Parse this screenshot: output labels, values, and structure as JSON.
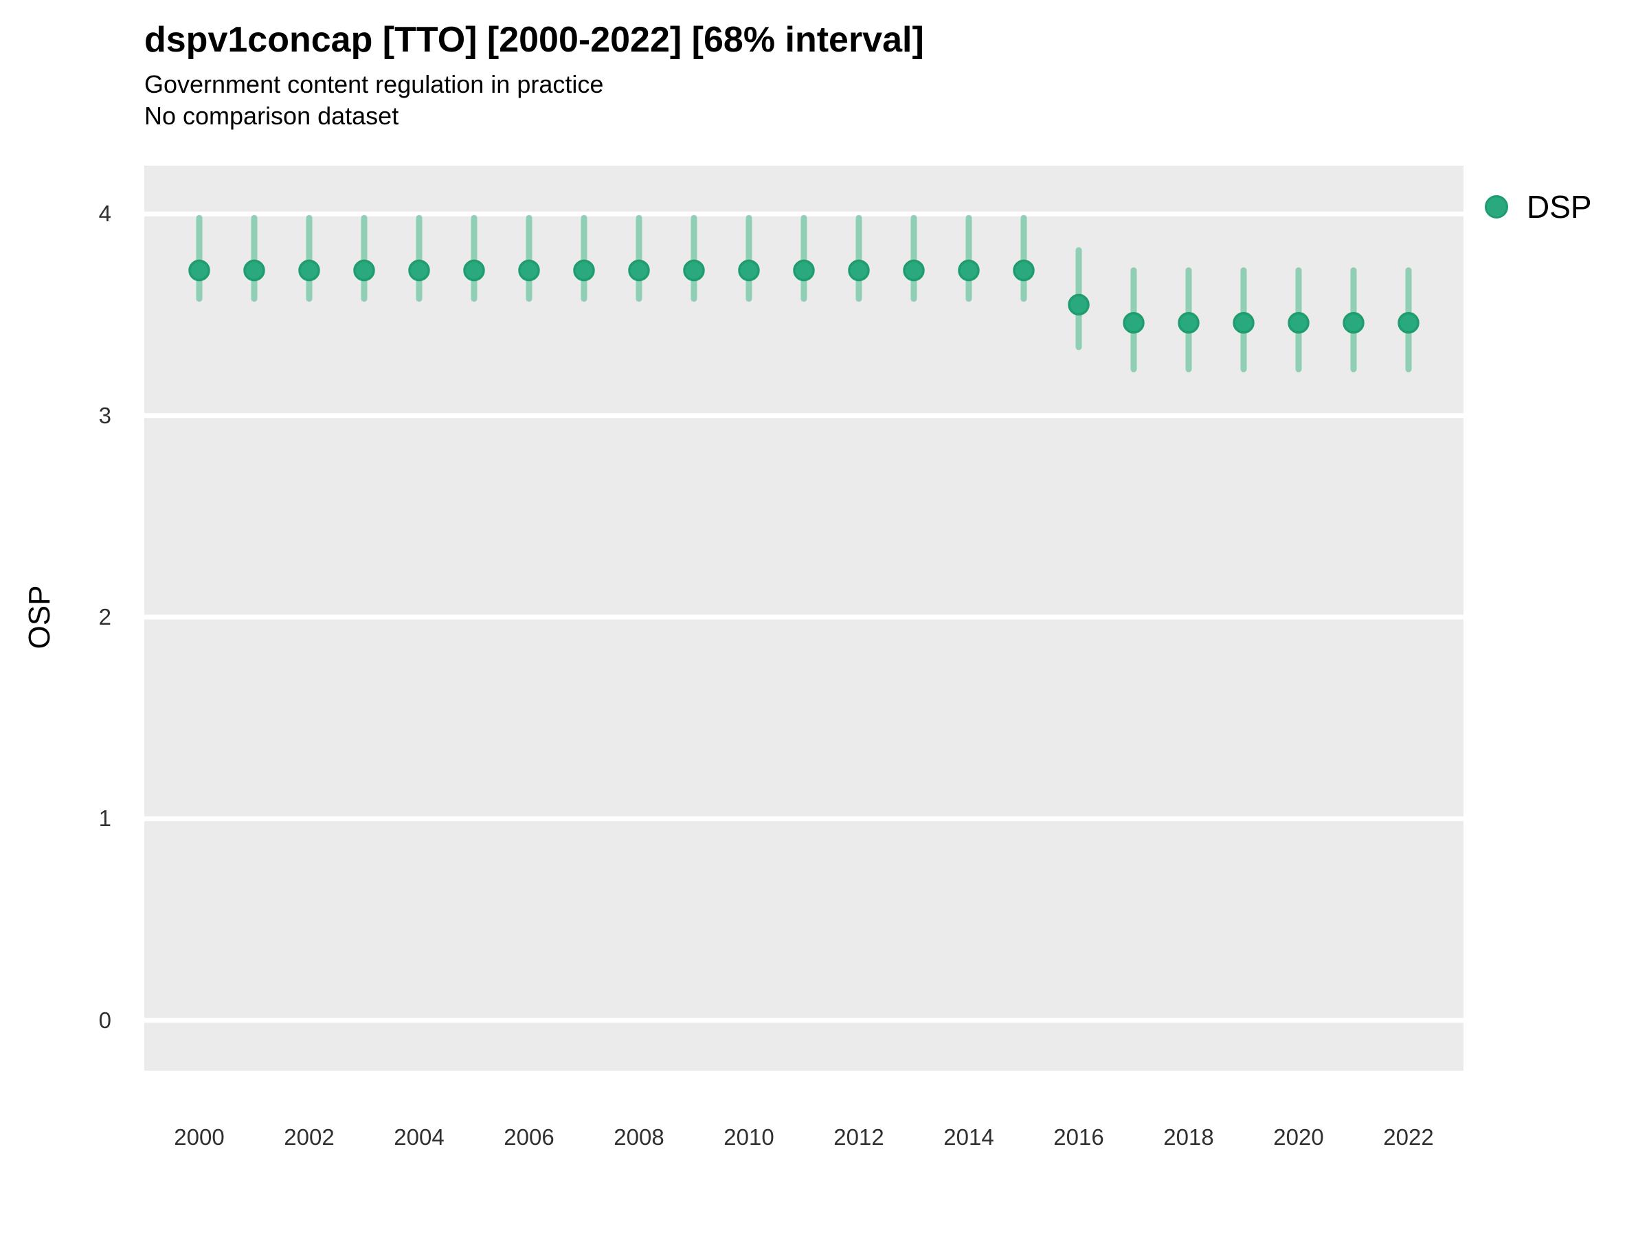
{
  "header": {
    "title": "dspv1concap [TTO] [2000-2022] [68% interval]",
    "subtitle": "Government content regulation in practice",
    "note": "No comparison dataset"
  },
  "legend": {
    "series_label": "DSP"
  },
  "axes": {
    "y_label": "OSP",
    "y_ticks": [
      4,
      3,
      2,
      1,
      0
    ],
    "x_ticks": [
      2000,
      2002,
      2004,
      2006,
      2008,
      2010,
      2012,
      2014,
      2016,
      2018,
      2020,
      2022
    ]
  },
  "colors": {
    "panel_background": "#EBEBEB",
    "gridline": "#FFFFFF",
    "interval_line": "#8FCFB4",
    "point_fill": "#2AA87E",
    "point_stroke": "#1F9D6F",
    "tick_text": "#303030",
    "title_text": "#000000"
  },
  "chart_data": {
    "type": "scatter",
    "title": "dspv1concap [TTO] [2000-2022] [68% interval]",
    "subtitle": "Government content regulation in practice",
    "note": "No comparison dataset",
    "xlabel": "",
    "ylabel": "OSP",
    "interval": "68%",
    "grid": "horizontal-major",
    "legend_position": "right",
    "xlim": [
      1999,
      2023
    ],
    "ylim": [
      -0.25,
      4.24
    ],
    "series": [
      {
        "name": "DSP",
        "points": [
          {
            "year": 2000,
            "value": 3.72,
            "lo": 3.58,
            "hi": 3.98
          },
          {
            "year": 2001,
            "value": 3.72,
            "lo": 3.58,
            "hi": 3.98
          },
          {
            "year": 2002,
            "value": 3.72,
            "lo": 3.58,
            "hi": 3.98
          },
          {
            "year": 2003,
            "value": 3.72,
            "lo": 3.58,
            "hi": 3.98
          },
          {
            "year": 2004,
            "value": 3.72,
            "lo": 3.58,
            "hi": 3.98
          },
          {
            "year": 2005,
            "value": 3.72,
            "lo": 3.58,
            "hi": 3.98
          },
          {
            "year": 2006,
            "value": 3.72,
            "lo": 3.58,
            "hi": 3.98
          },
          {
            "year": 2007,
            "value": 3.72,
            "lo": 3.58,
            "hi": 3.98
          },
          {
            "year": 2008,
            "value": 3.72,
            "lo": 3.58,
            "hi": 3.98
          },
          {
            "year": 2009,
            "value": 3.72,
            "lo": 3.58,
            "hi": 3.98
          },
          {
            "year": 2010,
            "value": 3.72,
            "lo": 3.58,
            "hi": 3.98
          },
          {
            "year": 2011,
            "value": 3.72,
            "lo": 3.58,
            "hi": 3.98
          },
          {
            "year": 2012,
            "value": 3.72,
            "lo": 3.58,
            "hi": 3.98
          },
          {
            "year": 2013,
            "value": 3.72,
            "lo": 3.58,
            "hi": 3.98
          },
          {
            "year": 2014,
            "value": 3.72,
            "lo": 3.58,
            "hi": 3.98
          },
          {
            "year": 2015,
            "value": 3.72,
            "lo": 3.58,
            "hi": 3.98
          },
          {
            "year": 2016,
            "value": 3.55,
            "lo": 3.34,
            "hi": 3.82
          },
          {
            "year": 2017,
            "value": 3.46,
            "lo": 3.23,
            "hi": 3.72
          },
          {
            "year": 2018,
            "value": 3.46,
            "lo": 3.23,
            "hi": 3.72
          },
          {
            "year": 2019,
            "value": 3.46,
            "lo": 3.23,
            "hi": 3.72
          },
          {
            "year": 2020,
            "value": 3.46,
            "lo": 3.23,
            "hi": 3.72
          },
          {
            "year": 2021,
            "value": 3.46,
            "lo": 3.23,
            "hi": 3.72
          },
          {
            "year": 2022,
            "value": 3.46,
            "lo": 3.23,
            "hi": 3.72
          }
        ]
      }
    ]
  }
}
